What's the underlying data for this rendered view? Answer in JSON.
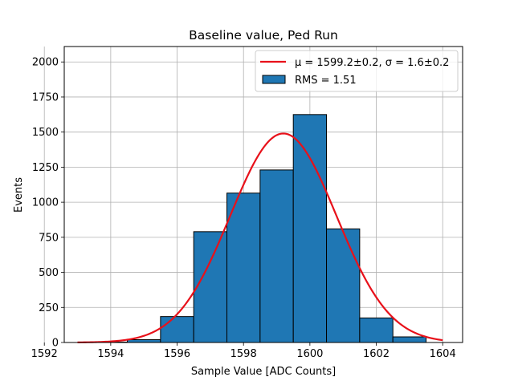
{
  "chart_data": {
    "type": "bar",
    "title": "Baseline value, Ped Run",
    "xlabel": "Sample Value [ADC Counts]",
    "ylabel": "Events",
    "xlim": [
      1592.6,
      1604.6
    ],
    "ylim": [
      0,
      2110
    ],
    "xticks": [
      1592,
      1594,
      1596,
      1598,
      1600,
      1602,
      1604
    ],
    "yticks": [
      0,
      250,
      500,
      750,
      1000,
      1250,
      1500,
      1750,
      2000
    ],
    "grid": true,
    "legend_position": "top-right",
    "histogram": {
      "bin_edges": [
        1592.5,
        1593.5,
        1594.5,
        1595.5,
        1596.5,
        1597.5,
        1598.5,
        1599.5,
        1600.5,
        1601.5,
        1602.5,
        1603.5
      ],
      "counts": [
        0,
        3,
        20,
        185,
        790,
        1065,
        1230,
        1625,
        810,
        175,
        40
      ],
      "color": "#1f77b4",
      "edgecolor": "#000000",
      "label": "RMS = 1.51"
    },
    "fit": {
      "type": "gaussian",
      "mean": 1599.2,
      "sigma": 1.6,
      "amplitude": 1490,
      "x_range": [
        1593,
        1604
      ],
      "color": "#e8111a",
      "label_mu": "μ = 1599.2±0.2, ",
      "label_sigma": "σ = 1.6±0.2"
    }
  }
}
